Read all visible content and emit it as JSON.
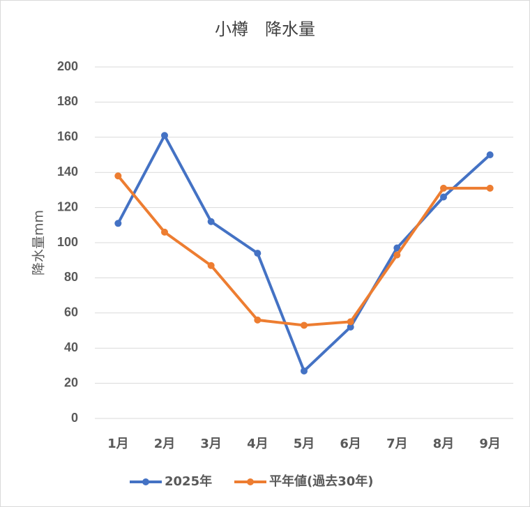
{
  "chart_data": {
    "type": "line",
    "title": "小樽　降水量",
    "xlabel": "",
    "ylabel": "降水量mm",
    "categories": [
      "1月",
      "2月",
      "3月",
      "4月",
      "5月",
      "6月",
      "7月",
      "8月",
      "9月"
    ],
    "ylim": [
      0,
      200
    ],
    "yticks": [
      0,
      20,
      40,
      60,
      80,
      100,
      120,
      140,
      160,
      180,
      200
    ],
    "grid": true,
    "legend": "bottom",
    "series": [
      {
        "name": "2025年",
        "color": "#4472c4",
        "values": [
          111,
          161,
          112,
          94,
          27,
          52,
          97,
          126,
          150
        ]
      },
      {
        "name": "平年値(過去30年)",
        "color": "#ed7d31",
        "values": [
          138,
          106,
          87,
          56,
          53,
          55,
          93,
          131,
          131
        ]
      }
    ]
  }
}
